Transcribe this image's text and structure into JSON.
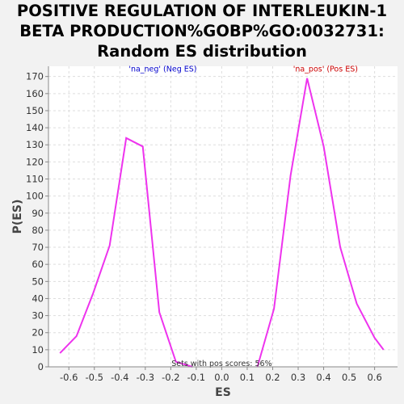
{
  "title_lines": [
    "POSITIVE REGULATION OF INTERLEUKIN-1",
    "BETA PRODUCTION%GOBP%GO:0032731:",
    "Random ES distribution"
  ],
  "chart_data": {
    "type": "line",
    "xlabel": "ES",
    "ylabel": "P(ES)",
    "xlim": [
      -0.68,
      0.69
    ],
    "ylim": [
      0,
      176
    ],
    "grid": true,
    "x_ticks": [
      -0.6,
      -0.5,
      -0.4,
      -0.3,
      -0.2,
      -0.1,
      0.0,
      0.1,
      0.2,
      0.3,
      0.4,
      0.5,
      0.6
    ],
    "x_tick_labels": [
      "-0.6",
      "-0.5",
      "-0.4",
      "-0.3",
      "-0.2",
      "-0.1",
      "0.0",
      "0.1",
      "0.2",
      "0.3",
      "0.4",
      "0.5",
      "0.6"
    ],
    "y_ticks": [
      0,
      10,
      20,
      30,
      40,
      50,
      60,
      70,
      80,
      90,
      100,
      110,
      120,
      130,
      140,
      150,
      160,
      170
    ],
    "series": [
      {
        "color": "#ee33ee",
        "x": [
          -0.635,
          -0.57,
          -0.505,
          -0.44,
          -0.375,
          -0.31,
          -0.245,
          -0.18,
          -0.115
        ],
        "y": [
          8,
          18,
          43,
          71,
          134,
          129,
          32,
          3,
          0
        ]
      },
      {
        "color": "#ee33ee",
        "x": [
          0.14,
          0.205,
          0.27,
          0.335,
          0.4,
          0.465,
          0.53,
          0.6,
          0.635
        ],
        "y": [
          0,
          34,
          112,
          169,
          129,
          70,
          37,
          17,
          10
        ]
      }
    ],
    "annotations": [
      {
        "text": "'na_neg' (Neg ES)",
        "color": "#0000cc",
        "x": -0.365,
        "y": 173
      },
      {
        "text": "'na_pos' (Pos ES)",
        "color": "#cc0000",
        "x": 0.28,
        "y": 173
      },
      {
        "text": "Sets with pos scores: 56%",
        "color": "#333333",
        "x": 0.0,
        "y": 0.5
      }
    ]
  }
}
